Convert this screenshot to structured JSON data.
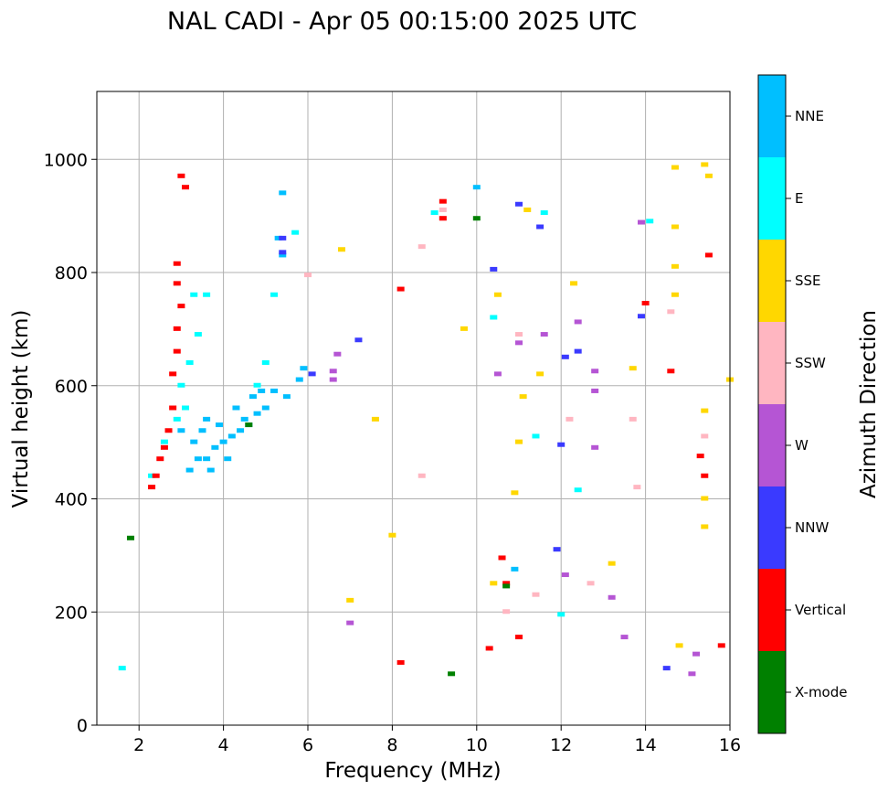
{
  "chart_data": {
    "type": "scatter",
    "title": "NAL CADI - Apr 05 00:15:00 2025 UTC",
    "xlabel": "Frequency (MHz)",
    "ylabel": "Virtual height (km)",
    "xlim": [
      1,
      16
    ],
    "ylim": [
      0,
      1120
    ],
    "xticks": [
      2,
      4,
      6,
      8,
      10,
      12,
      14,
      16
    ],
    "yticks": [
      0,
      200,
      400,
      600,
      800,
      1000
    ],
    "grid": true,
    "colorbar": {
      "label": "Azimuth Direction",
      "position": "right",
      "categories": [
        {
          "name": "X-mode",
          "color": "#008000"
        },
        {
          "name": "Vertical",
          "color": "#ff0000"
        },
        {
          "name": "NNW",
          "color": "#3a3aff"
        },
        {
          "name": "W",
          "color": "#b555d4"
        },
        {
          "name": "SSW",
          "color": "#ffb6c1"
        },
        {
          "name": "SSE",
          "color": "#ffd700"
        },
        {
          "name": "E",
          "color": "#00ffff"
        },
        {
          "name": "NNE",
          "color": "#00bfff"
        }
      ]
    },
    "series": [
      {
        "name": "NNE",
        "points": [
          [
            3.2,
            450
          ],
          [
            3.4,
            470
          ],
          [
            3.6,
            470
          ],
          [
            3.8,
            490
          ],
          [
            4.0,
            500
          ],
          [
            4.2,
            510
          ],
          [
            4.4,
            520
          ],
          [
            4.6,
            530
          ],
          [
            4.8,
            550
          ],
          [
            5.0,
            560
          ],
          [
            3.5,
            520
          ],
          [
            3.9,
            530
          ],
          [
            4.3,
            560
          ],
          [
            4.1,
            470
          ],
          [
            3.7,
            450
          ],
          [
            4.5,
            540
          ],
          [
            3.3,
            500
          ],
          [
            3.6,
            540
          ],
          [
            3.0,
            520
          ],
          [
            4.9,
            590
          ],
          [
            5.2,
            590
          ],
          [
            5.5,
            580
          ],
          [
            5.8,
            610
          ],
          [
            5.4,
            940
          ],
          [
            5.3,
            860
          ],
          [
            5.4,
            830
          ],
          [
            10.0,
            950
          ],
          [
            10.9,
            275
          ],
          [
            5.9,
            630
          ],
          [
            4.7,
            580
          ]
        ]
      },
      {
        "name": "E",
        "points": [
          [
            2.9,
            540
          ],
          [
            3.1,
            560
          ],
          [
            3.0,
            600
          ],
          [
            3.2,
            640
          ],
          [
            3.4,
            690
          ],
          [
            3.6,
            760
          ],
          [
            3.3,
            760
          ],
          [
            4.8,
            600
          ],
          [
            5.0,
            640
          ],
          [
            5.2,
            760
          ],
          [
            5.7,
            870
          ],
          [
            2.6,
            500
          ],
          [
            2.3,
            440
          ],
          [
            1.6,
            100
          ],
          [
            10.4,
            720
          ],
          [
            9.0,
            905
          ],
          [
            11.6,
            905
          ],
          [
            14.1,
            890
          ],
          [
            12.4,
            415
          ],
          [
            11.4,
            510
          ],
          [
            12.0,
            195
          ]
        ]
      },
      {
        "name": "SSE",
        "points": [
          [
            6.8,
            840
          ],
          [
            8.0,
            335
          ],
          [
            7.0,
            220
          ],
          [
            7.6,
            540
          ],
          [
            9.7,
            700
          ],
          [
            10.4,
            250
          ],
          [
            10.5,
            760
          ],
          [
            10.9,
            410
          ],
          [
            11.0,
            500
          ],
          [
            11.1,
            580
          ],
          [
            11.2,
            910
          ],
          [
            11.5,
            620
          ],
          [
            12.3,
            780
          ],
          [
            13.2,
            285
          ],
          [
            13.7,
            630
          ],
          [
            14.7,
            985
          ],
          [
            14.7,
            880
          ],
          [
            14.7,
            810
          ],
          [
            14.7,
            760
          ],
          [
            15.4,
            990
          ],
          [
            15.5,
            970
          ],
          [
            15.4,
            555
          ],
          [
            15.4,
            400
          ],
          [
            15.4,
            350
          ],
          [
            16.0,
            610
          ],
          [
            14.8,
            140
          ]
        ]
      },
      {
        "name": "SSW",
        "points": [
          [
            9.2,
            910
          ],
          [
            9.2,
            895
          ],
          [
            10.7,
            200
          ],
          [
            11.0,
            690
          ],
          [
            11.4,
            230
          ],
          [
            12.2,
            540
          ],
          [
            12.7,
            250
          ],
          [
            13.7,
            540
          ],
          [
            13.8,
            420
          ],
          [
            14.6,
            730
          ],
          [
            15.4,
            510
          ],
          [
            8.7,
            440
          ],
          [
            8.7,
            845
          ],
          [
            6.0,
            795
          ]
        ]
      },
      {
        "name": "W",
        "points": [
          [
            6.6,
            625
          ],
          [
            6.6,
            610
          ],
          [
            6.7,
            655
          ],
          [
            7.0,
            180
          ],
          [
            10.5,
            620
          ],
          [
            11.0,
            675
          ],
          [
            11.6,
            690
          ],
          [
            12.1,
            265
          ],
          [
            12.4,
            712
          ],
          [
            12.8,
            625
          ],
          [
            12.8,
            590
          ],
          [
            12.8,
            490
          ],
          [
            13.2,
            225
          ],
          [
            13.5,
            155
          ],
          [
            13.9,
            888
          ],
          [
            15.1,
            90
          ],
          [
            15.2,
            125
          ]
        ]
      },
      {
        "name": "NNW",
        "points": [
          [
            5.4,
            835
          ],
          [
            5.4,
            860
          ],
          [
            6.1,
            620
          ],
          [
            7.2,
            680
          ],
          [
            10.4,
            805
          ],
          [
            11.0,
            920
          ],
          [
            12.0,
            495
          ],
          [
            12.1,
            650
          ],
          [
            12.4,
            660
          ],
          [
            11.5,
            880
          ],
          [
            11.9,
            310
          ],
          [
            13.9,
            722
          ],
          [
            14.5,
            100
          ]
        ]
      },
      {
        "name": "Vertical",
        "points": [
          [
            2.8,
            560
          ],
          [
            2.8,
            620
          ],
          [
            2.9,
            660
          ],
          [
            2.9,
            700
          ],
          [
            3.0,
            740
          ],
          [
            2.9,
            780
          ],
          [
            2.7,
            520
          ],
          [
            2.6,
            490
          ],
          [
            2.5,
            470
          ],
          [
            2.4,
            440
          ],
          [
            2.3,
            420
          ],
          [
            3.0,
            970
          ],
          [
            3.1,
            950
          ],
          [
            2.9,
            815
          ],
          [
            8.2,
            770
          ],
          [
            9.2,
            925
          ],
          [
            9.2,
            895
          ],
          [
            10.6,
            295
          ],
          [
            10.7,
            250
          ],
          [
            10.3,
            135
          ],
          [
            11.0,
            155
          ],
          [
            14.0,
            745
          ],
          [
            14.6,
            625
          ],
          [
            15.3,
            475
          ],
          [
            15.4,
            440
          ],
          [
            15.5,
            830
          ],
          [
            15.8,
            140
          ],
          [
            8.2,
            110
          ]
        ]
      },
      {
        "name": "X-mode",
        "points": [
          [
            4.6,
            530
          ],
          [
            9.4,
            90
          ],
          [
            10.0,
            895
          ],
          [
            10.7,
            245
          ],
          [
            1.8,
            330
          ]
        ]
      }
    ]
  }
}
